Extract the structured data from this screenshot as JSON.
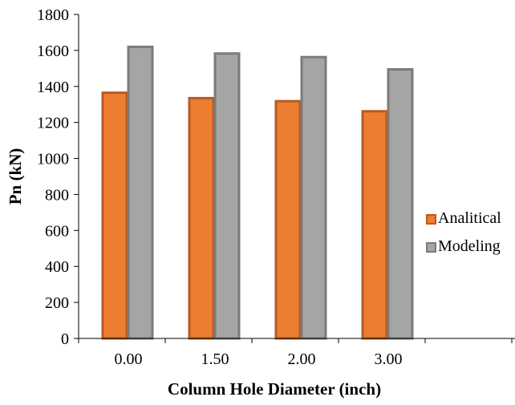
{
  "chart_data": {
    "type": "bar",
    "title": "",
    "xlabel": "Column Hole Diameter (inch)",
    "ylabel": "Pn (kN)",
    "categories": [
      "0.00",
      "1.50",
      "2.00",
      "3.00"
    ],
    "ylim": [
      0,
      1800
    ],
    "yticks": [
      "0",
      "200",
      "400",
      "600",
      "800",
      "1000",
      "1200",
      "1400",
      "1600",
      "1800"
    ],
    "grid": false,
    "legend_position": "right",
    "series": [
      {
        "name": "Analitical",
        "values": [
          1365,
          1335,
          1318,
          1262
        ],
        "fill": "#ED7D31",
        "stroke": "#B85A1E"
      },
      {
        "name": "Modeling",
        "values": [
          1620,
          1583,
          1563,
          1495
        ],
        "fill": "#A5A5A5",
        "stroke": "#7B7B7B"
      }
    ]
  }
}
